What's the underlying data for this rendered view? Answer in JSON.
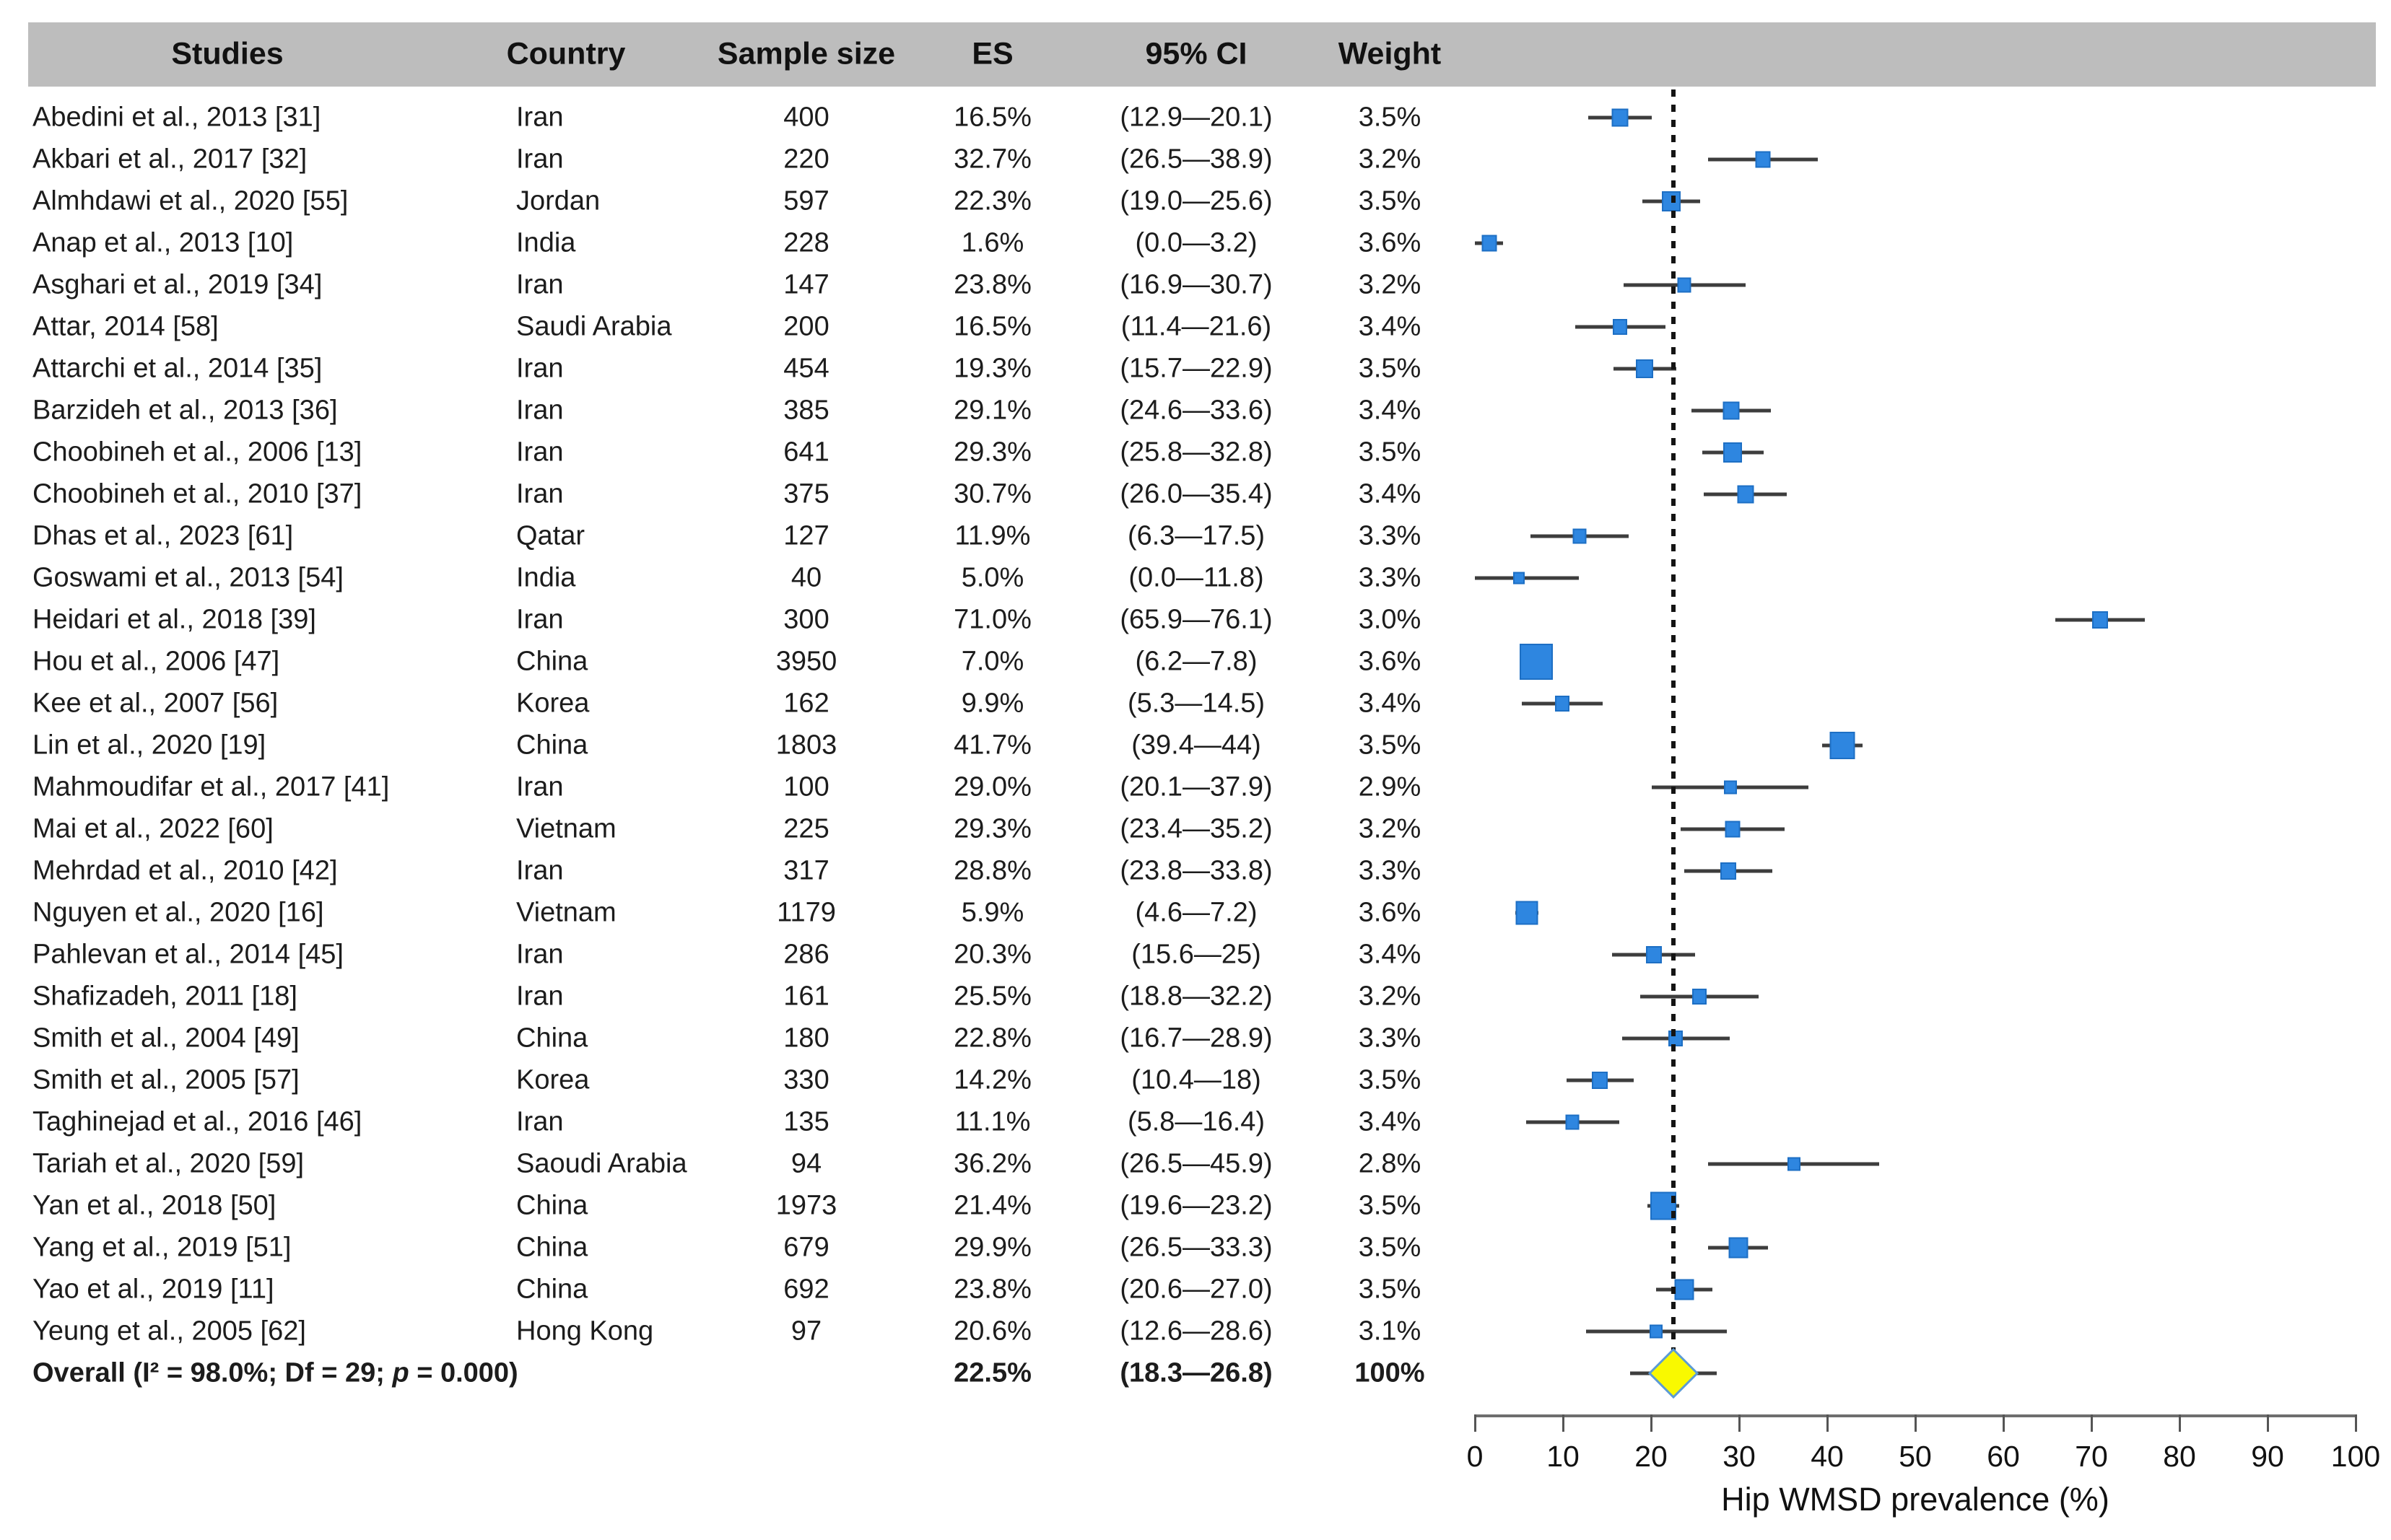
{
  "table": {
    "columns": [
      "Studies",
      "Country",
      "Sample size",
      "ES",
      "95% CI",
      "Weight"
    ]
  },
  "chart_data": {
    "type": "forest",
    "xlabel": "Hip WMSD prevalence (%)",
    "x_axis": {
      "min": 0,
      "max": 100,
      "ticks": [
        0,
        10,
        20,
        30,
        40,
        50,
        60,
        70,
        80,
        90,
        100
      ],
      "grid": false
    },
    "pooled_reference_line_x": 22.5,
    "marker_color": "#2e86e0",
    "diamond_color": "#f9f900",
    "diamond_border_color": "#5b9bd5",
    "studies": [
      {
        "study": "Abedini et al., 2013 [31]",
        "country": "Iran",
        "n": 400,
        "es": 16.5,
        "ci_lo": 12.9,
        "ci_hi": 20.1,
        "weight": 3.5,
        "es_text": "16.5%",
        "ci_text": "(12.9—20.1)",
        "weight_text": "3.5%"
      },
      {
        "study": "Akbari et al., 2017 [32]",
        "country": "Iran",
        "n": 220,
        "es": 32.7,
        "ci_lo": 26.5,
        "ci_hi": 38.9,
        "weight": 3.2,
        "es_text": "32.7%",
        "ci_text": "(26.5—38.9)",
        "weight_text": "3.2%"
      },
      {
        "study": "Almhdawi et al., 2020 [55]",
        "country": "Jordan",
        "n": 597,
        "es": 22.3,
        "ci_lo": 19.0,
        "ci_hi": 25.6,
        "weight": 3.5,
        "es_text": "22.3%",
        "ci_text": "(19.0—25.6)",
        "weight_text": "3.5%"
      },
      {
        "study": "Anap et al., 2013 [10]",
        "country": "India",
        "n": 228,
        "es": 1.6,
        "ci_lo": 0.0,
        "ci_hi": 3.2,
        "weight": 3.6,
        "es_text": "1.6%",
        "ci_text": "(0.0—3.2)",
        "weight_text": "3.6%"
      },
      {
        "study": "Asghari et al., 2019 [34]",
        "country": "Iran",
        "n": 147,
        "es": 23.8,
        "ci_lo": 16.9,
        "ci_hi": 30.7,
        "weight": 3.2,
        "es_text": "23.8%",
        "ci_text": "(16.9—30.7)",
        "weight_text": "3.2%"
      },
      {
        "study": "Attar, 2014 [58]",
        "country": "Saudi Arabia",
        "n": 200,
        "es": 16.5,
        "ci_lo": 11.4,
        "ci_hi": 21.6,
        "weight": 3.4,
        "es_text": "16.5%",
        "ci_text": "(11.4—21.6)",
        "weight_text": "3.4%"
      },
      {
        "study": "Attarchi et al., 2014 [35]",
        "country": "Iran",
        "n": 454,
        "es": 19.3,
        "ci_lo": 15.7,
        "ci_hi": 22.9,
        "weight": 3.5,
        "es_text": "19.3%",
        "ci_text": "(15.7—22.9)",
        "weight_text": "3.5%"
      },
      {
        "study": "Barzideh et al., 2013 [36]",
        "country": "Iran",
        "n": 385,
        "es": 29.1,
        "ci_lo": 24.6,
        "ci_hi": 33.6,
        "weight": 3.4,
        "es_text": "29.1%",
        "ci_text": "(24.6—33.6)",
        "weight_text": "3.4%"
      },
      {
        "study": "Choobineh et al., 2006 [13]",
        "country": "Iran",
        "n": 641,
        "es": 29.3,
        "ci_lo": 25.8,
        "ci_hi": 32.8,
        "weight": 3.5,
        "es_text": "29.3%",
        "ci_text": "(25.8—32.8)",
        "weight_text": "3.5%"
      },
      {
        "study": "Choobineh et al., 2010 [37]",
        "country": "Iran",
        "n": 375,
        "es": 30.7,
        "ci_lo": 26.0,
        "ci_hi": 35.4,
        "weight": 3.4,
        "es_text": "30.7%",
        "ci_text": "(26.0—35.4)",
        "weight_text": "3.4%"
      },
      {
        "study": "Dhas et al., 2023 [61]",
        "country": "Qatar",
        "n": 127,
        "es": 11.9,
        "ci_lo": 6.3,
        "ci_hi": 17.5,
        "weight": 3.3,
        "es_text": "11.9%",
        "ci_text": "(6.3—17.5)",
        "weight_text": "3.3%"
      },
      {
        "study": "Goswami et al., 2013 [54]",
        "country": "India",
        "n": 40,
        "es": 5.0,
        "ci_lo": 0.0,
        "ci_hi": 11.8,
        "weight": 3.3,
        "es_text": "5.0%",
        "ci_text": "(0.0—11.8)",
        "weight_text": "3.3%"
      },
      {
        "study": "Heidari et al., 2018 [39]",
        "country": "Iran",
        "n": 300,
        "es": 71.0,
        "ci_lo": 65.9,
        "ci_hi": 76.1,
        "weight": 3.0,
        "es_text": "71.0%",
        "ci_text": "(65.9—76.1)",
        "weight_text": "3.0%"
      },
      {
        "study": "Hou et al., 2006 [47]",
        "country": "China",
        "n": 3950,
        "es": 7.0,
        "ci_lo": 6.2,
        "ci_hi": 7.8,
        "weight": 3.6,
        "es_text": "7.0%",
        "ci_text": "(6.2—7.8)",
        "weight_text": "3.6%"
      },
      {
        "study": "Kee et al., 2007 [56]",
        "country": "Korea",
        "n": 162,
        "es": 9.9,
        "ci_lo": 5.3,
        "ci_hi": 14.5,
        "weight": 3.4,
        "es_text": "9.9%",
        "ci_text": "(5.3—14.5)",
        "weight_text": "3.4%"
      },
      {
        "study": "Lin et al., 2020 [19]",
        "country": "China",
        "n": 1803,
        "es": 41.7,
        "ci_lo": 39.4,
        "ci_hi": 44,
        "weight": 3.5,
        "es_text": "41.7%",
        "ci_text": "(39.4—44)",
        "weight_text": "3.5%"
      },
      {
        "study": "Mahmoudifar et al., 2017 [41]",
        "country": "Iran",
        "n": 100,
        "es": 29.0,
        "ci_lo": 20.1,
        "ci_hi": 37.9,
        "weight": 2.9,
        "es_text": "29.0%",
        "ci_text": "(20.1—37.9)",
        "weight_text": "2.9%"
      },
      {
        "study": "Mai et al., 2022 [60]",
        "country": "Vietnam",
        "n": 225,
        "es": 29.3,
        "ci_lo": 23.4,
        "ci_hi": 35.2,
        "weight": 3.2,
        "es_text": "29.3%",
        "ci_text": "(23.4—35.2)",
        "weight_text": "3.2%"
      },
      {
        "study": "Mehrdad et al., 2010 [42]",
        "country": "Iran",
        "n": 317,
        "es": 28.8,
        "ci_lo": 23.8,
        "ci_hi": 33.8,
        "weight": 3.3,
        "es_text": "28.8%",
        "ci_text": "(23.8—33.8)",
        "weight_text": "3.3%"
      },
      {
        "study": "Nguyen et al., 2020 [16]",
        "country": "Vietnam",
        "n": 1179,
        "es": 5.9,
        "ci_lo": 4.6,
        "ci_hi": 7.2,
        "weight": 3.6,
        "es_text": "5.9%",
        "ci_text": "(4.6—7.2)",
        "weight_text": "3.6%"
      },
      {
        "study": "Pahlevan et al., 2014 [45]",
        "country": "Iran",
        "n": 286,
        "es": 20.3,
        "ci_lo": 15.6,
        "ci_hi": 25,
        "weight": 3.4,
        "es_text": "20.3%",
        "ci_text": "(15.6—25)",
        "weight_text": "3.4%"
      },
      {
        "study": "Shafizadeh, 2011 [18]",
        "country": "Iran",
        "n": 161,
        "es": 25.5,
        "ci_lo": 18.8,
        "ci_hi": 32.2,
        "weight": 3.2,
        "es_text": "25.5%",
        "ci_text": "(18.8—32.2)",
        "weight_text": "3.2%"
      },
      {
        "study": "Smith et al., 2004 [49]",
        "country": "China",
        "n": 180,
        "es": 22.8,
        "ci_lo": 16.7,
        "ci_hi": 28.9,
        "weight": 3.3,
        "es_text": "22.8%",
        "ci_text": "(16.7—28.9)",
        "weight_text": "3.3%"
      },
      {
        "study": "Smith et al., 2005 [57]",
        "country": "Korea",
        "n": 330,
        "es": 14.2,
        "ci_lo": 10.4,
        "ci_hi": 18,
        "weight": 3.5,
        "es_text": "14.2%",
        "ci_text": "(10.4—18)",
        "weight_text": "3.5%"
      },
      {
        "study": "Taghinejad et al., 2016 [46]",
        "country": "Iran",
        "n": 135,
        "es": 11.1,
        "ci_lo": 5.8,
        "ci_hi": 16.4,
        "weight": 3.4,
        "es_text": "11.1%",
        "ci_text": "(5.8—16.4)",
        "weight_text": "3.4%"
      },
      {
        "study": "Tariah et al., 2020 [59]",
        "country": "Saoudi Arabia",
        "n": 94,
        "es": 36.2,
        "ci_lo": 26.5,
        "ci_hi": 45.9,
        "weight": 2.8,
        "es_text": "36.2%",
        "ci_text": "(26.5—45.9)",
        "weight_text": "2.8%"
      },
      {
        "study": "Yan et al., 2018 [50]",
        "country": "China",
        "n": 1973,
        "es": 21.4,
        "ci_lo": 19.6,
        "ci_hi": 23.2,
        "weight": 3.5,
        "es_text": "21.4%",
        "ci_text": "(19.6—23.2)",
        "weight_text": "3.5%"
      },
      {
        "study": "Yang et al., 2019 [51]",
        "country": "China",
        "n": 679,
        "es": 29.9,
        "ci_lo": 26.5,
        "ci_hi": 33.3,
        "weight": 3.5,
        "es_text": "29.9%",
        "ci_text": "(26.5—33.3)",
        "weight_text": "3.5%"
      },
      {
        "study": "Yao et al., 2019 [11]",
        "country": "China",
        "n": 692,
        "es": 23.8,
        "ci_lo": 20.6,
        "ci_hi": 27.0,
        "weight": 3.5,
        "es_text": "23.8%",
        "ci_text": "(20.6—27.0)",
        "weight_text": "3.5%"
      },
      {
        "study": "Yeung et al., 2005 [62]",
        "country": "Hong Kong",
        "n": 97,
        "es": 20.6,
        "ci_lo": 12.6,
        "ci_hi": 28.6,
        "weight": 3.1,
        "es_text": "20.6%",
        "ci_text": "(12.6—28.6)",
        "weight_text": "3.1%"
      }
    ],
    "overall": {
      "label_parts": [
        "Overall (I² = 98.0%; Df = 29; ",
        "p",
        " = 0.000)"
      ],
      "es": 22.5,
      "ci_lo": 18.3,
      "ci_hi": 26.8,
      "es_text": "22.5%",
      "ci_text": "(18.3—26.8)",
      "weight_text": "100%"
    }
  }
}
